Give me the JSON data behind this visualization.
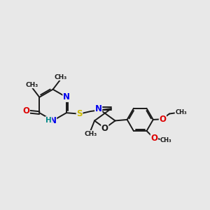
{
  "bg_color": "#e8e8e8",
  "bond_color": "#1a1a1a",
  "bond_width": 1.4,
  "atom_colors": {
    "N": "#0000ee",
    "O": "#dd0000",
    "S": "#ccbb00",
    "H": "#008888",
    "C": "#1a1a1a"
  },
  "figsize": [
    3.0,
    3.0
  ],
  "dpi": 100,
  "xlim": [
    -0.5,
    9.0
  ],
  "ylim": [
    2.5,
    7.5
  ]
}
